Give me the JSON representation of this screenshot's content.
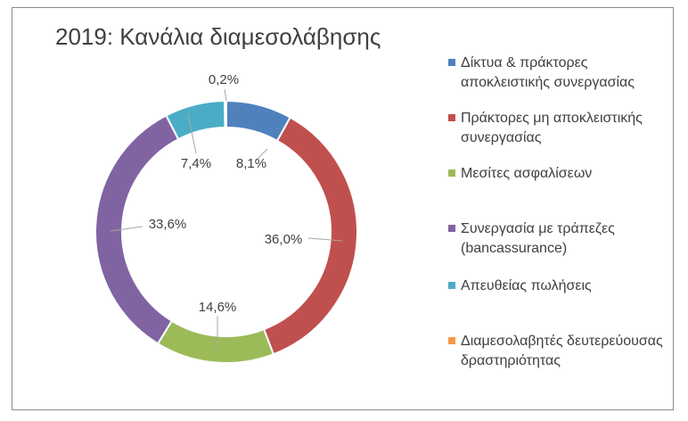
{
  "chart_data": {
    "type": "pie",
    "title": "2019: Κανάλια διαμεσολάβησης",
    "legend_position": "right",
    "series": [
      {
        "name": "Δίκτυα & πράκτορες αποκλειστικής συνεργασίας",
        "value": 8.1,
        "label": "8,1%",
        "color": "#4f81bd"
      },
      {
        "name": "Πράκτορες μη αποκλειστικής συνεργασίας",
        "value": 36.0,
        "label": "36,0%",
        "color": "#c0504d"
      },
      {
        "name": "Μεσίτες ασφαλίσεων",
        "value": 14.6,
        "label": "14,6%",
        "color": "#9bbb59"
      },
      {
        "name": "Συνεργασία με τράπεζες (bancassurance)",
        "value": 33.6,
        "label": "33,6%",
        "color": "#8064a2"
      },
      {
        "name": "Απευθείας πωλήσεις",
        "value": 7.4,
        "label": "7,4%",
        "color": "#4bacc6"
      },
      {
        "name": "Διαμεσολαβητές δευτερεύουσας δραστηριότητας",
        "value": 0.2,
        "label": "0,2%",
        "color": "#f79646"
      }
    ]
  }
}
